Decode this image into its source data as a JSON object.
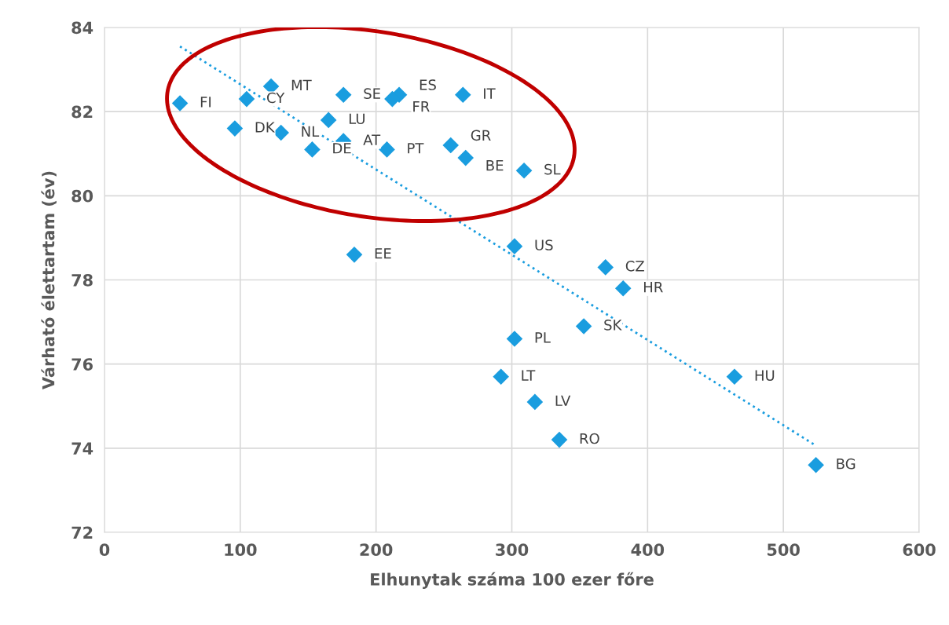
{
  "chart_data": {
    "type": "scatter",
    "xlabel": "Elhunytak száma 100 ezer főre",
    "ylabel": "Várható élettartam (év)",
    "xlim": [
      0,
      600
    ],
    "ylim": [
      72,
      84
    ],
    "xticks": [
      0,
      100,
      200,
      300,
      400,
      500,
      600
    ],
    "yticks": [
      72,
      74,
      76,
      78,
      80,
      82,
      84
    ],
    "grid": true,
    "series": [
      {
        "color": "#1a9ddf",
        "marker": "diamond",
        "x": [
          55.6,
          104.7,
          122.7,
          176,
          217,
          212,
          264,
          96,
          130,
          165,
          153,
          176,
          208,
          255,
          266,
          309,
          184,
          302,
          369,
          382,
          353,
          302,
          292,
          317,
          335,
          464,
          524
        ],
        "values": [
          82.2,
          82.3,
          82.6,
          82.4,
          82.4,
          82.3,
          82.4,
          81.6,
          81.5,
          81.8,
          81.1,
          81.3,
          81.1,
          81.2,
          80.9,
          80.6,
          78.6,
          78.8,
          78.3,
          77.8,
          76.9,
          76.6,
          75.7,
          75.1,
          74.2,
          75.7,
          73.6
        ]
      },
      {
        "type": "line",
        "marker": "none",
        "color": "#1a9ddf",
        "line_style": "dotted",
        "x": [
          55.6,
          524
        ],
        "values": [
          83.55,
          74.06
        ]
      }
    ],
    "annotations": [
      {
        "text": "FI",
        "x": 55.6,
        "y": 82.2
      },
      {
        "text": "CY",
        "x": 104.7,
        "y": 82.3
      },
      {
        "text": "MT",
        "x": 122.7,
        "y": 82.6
      },
      {
        "text": "SE",
        "x": 176,
        "y": 82.4
      },
      {
        "text": "ES",
        "x": 217,
        "y": 82.4
      },
      {
        "text": "FR",
        "x": 212,
        "y": 82.3
      },
      {
        "text": "IT",
        "x": 264,
        "y": 82.4
      },
      {
        "text": "DK",
        "x": 96,
        "y": 81.6
      },
      {
        "text": "NL",
        "x": 130,
        "y": 81.5
      },
      {
        "text": "LU",
        "x": 165,
        "y": 81.8
      },
      {
        "text": "DE",
        "x": 153,
        "y": 81.1
      },
      {
        "text": "AT",
        "x": 176,
        "y": 81.3
      },
      {
        "text": "PT",
        "x": 208,
        "y": 81.1
      },
      {
        "text": "GR",
        "x": 255,
        "y": 81.2
      },
      {
        "text": "BE",
        "x": 266,
        "y": 80.9
      },
      {
        "text": "SL",
        "x": 309,
        "y": 80.6
      },
      {
        "text": "EE",
        "x": 184,
        "y": 78.6
      },
      {
        "text": "US",
        "x": 302,
        "y": 78.8
      },
      {
        "text": "CZ",
        "x": 369,
        "y": 78.3
      },
      {
        "text": "HR",
        "x": 382,
        "y": 77.8
      },
      {
        "text": "SK",
        "x": 353,
        "y": 76.9
      },
      {
        "text": "PL",
        "x": 302,
        "y": 76.6
      },
      {
        "text": "LT",
        "x": 292,
        "y": 75.7
      },
      {
        "text": "LV",
        "x": 317,
        "y": 75.1
      },
      {
        "text": "RO",
        "x": 335,
        "y": 74.2
      },
      {
        "text": "HU",
        "x": 464,
        "y": 75.7
      },
      {
        "text": "BG",
        "x": 524,
        "y": 73.6
      }
    ]
  }
}
